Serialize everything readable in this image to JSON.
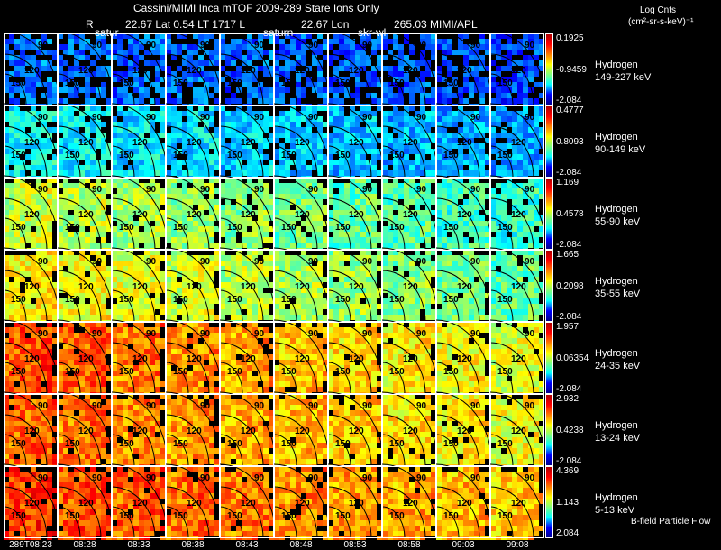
{
  "header": {
    "title": "Cassini/MIMI Inca mTOF  2009-289    Stare    Ions Only",
    "r_label": "R",
    "position": "22.67 Lat 0.54 LT 1717 L",
    "lon": "22.67 Lon",
    "lon_value": "265.03  MIMI/APL",
    "units_title": "Log Cnts",
    "units": "(cm²-sr-s-keV)⁻¹",
    "annotations": [
      "satur",
      "saturn",
      "skr-wl"
    ]
  },
  "footer_note": "B-field Particle Flow",
  "chart_data": {
    "type": "heatmap",
    "title": "Cassini/MIMI Inca mTOF 2009-289 Stare Ions Only",
    "time_labels": [
      "289T08:23",
      "08:28",
      "08:33",
      "08:38",
      "08:43",
      "08:48",
      "08:53",
      "08:58",
      "09:03",
      "09:08"
    ],
    "contour_labels": [
      "90",
      "120",
      "150",
      "180"
    ],
    "rows": [
      {
        "species": "Hydrogen",
        "energy": "149-227 keV",
        "cb_max": "0.1925",
        "cb_mid": "-0.9459",
        "cb_min": "-2.084",
        "level_start": 0.22,
        "level_end": 0.18,
        "missing": 0.3
      },
      {
        "species": "Hydrogen",
        "energy": "90-149 keV",
        "cb_max": "0.4777",
        "cb_mid": "0.8093",
        "cb_min": "-2.084",
        "level_start": 0.36,
        "level_end": 0.26,
        "missing": 0.08
      },
      {
        "species": "Hydrogen",
        "energy": "55-90 keV",
        "cb_max": "1.169",
        "cb_mid": "0.4578",
        "cb_min": "-2.084",
        "level_start": 0.56,
        "level_end": 0.4,
        "missing": 0.05
      },
      {
        "species": "Hydrogen",
        "energy": "35-55 keV",
        "cb_max": "1.665",
        "cb_mid": "0.2098",
        "cb_min": "-2.084",
        "level_start": 0.62,
        "level_end": 0.45,
        "missing": 0.04
      },
      {
        "species": "Hydrogen",
        "energy": "24-35 keV",
        "cb_max": "1.957",
        "cb_mid": "0.06354",
        "cb_min": "-2.084",
        "level_start": 0.78,
        "level_end": 0.58,
        "missing": 0.04
      },
      {
        "species": "Hydrogen",
        "energy": "13-24 keV",
        "cb_max": "2.932",
        "cb_mid": "0.4238",
        "cb_min": "-2.084",
        "level_start": 0.76,
        "level_end": 0.6,
        "missing": 0.04
      },
      {
        "species": "Hydrogen",
        "energy": "5-13 keV",
        "cb_max": "4.369",
        "cb_mid": "1.143",
        "cb_min": "2.084",
        "level_start": 0.8,
        "level_end": 0.66,
        "missing": 0.04
      }
    ]
  }
}
